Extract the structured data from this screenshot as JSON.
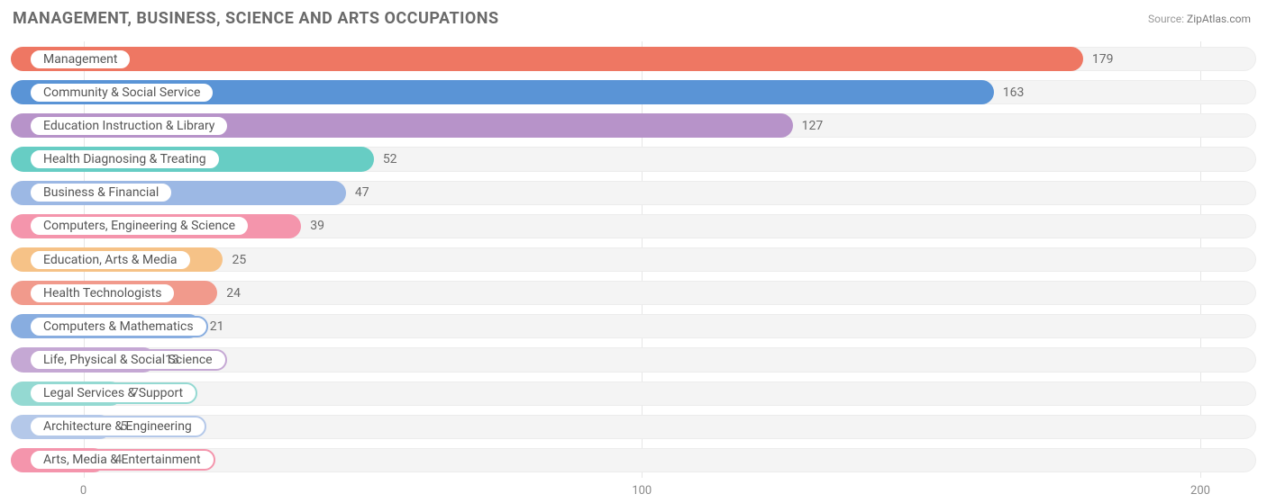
{
  "title": "MANAGEMENT, BUSINESS, SCIENCE AND ARTS OCCUPATIONS",
  "source": {
    "label": "Source:",
    "name": "ZipAtlas.com"
  },
  "chart": {
    "type": "bar-horizontal",
    "xlim": [
      -13,
      210
    ],
    "ticks": [
      0,
      100,
      200
    ],
    "background_color": "#ffffff",
    "track_color": "#f4f4f4",
    "track_border": "#ececec",
    "grid_color": "#e6e6e6",
    "title_fontsize": 18,
    "label_fontsize": 14,
    "tick_fontsize": 13,
    "text_color": "#6a6a6a",
    "bars": [
      {
        "label": "Management",
        "value": 179,
        "bar_color": "#ee7763",
        "pill_border": "#ee7763"
      },
      {
        "label": "Community & Social Service",
        "value": 163,
        "bar_color": "#5a94d6",
        "pill_border": "#5a94d6"
      },
      {
        "label": "Education Instruction & Library",
        "value": 127,
        "bar_color": "#b793c9",
        "pill_border": "#b793c9"
      },
      {
        "label": "Health Diagnosing & Treating",
        "value": 52,
        "bar_color": "#67cdc4",
        "pill_border": "#67cdc4"
      },
      {
        "label": "Business & Financial",
        "value": 47,
        "bar_color": "#9cb8e4",
        "pill_border": "#9cb8e4"
      },
      {
        "label": "Computers, Engineering & Science",
        "value": 39,
        "bar_color": "#f495ac",
        "pill_border": "#f495ac"
      },
      {
        "label": "Education, Arts & Media",
        "value": 25,
        "bar_color": "#f6c287",
        "pill_border": "#f6c287"
      },
      {
        "label": "Health Technologists",
        "value": 24,
        "bar_color": "#f19a8c",
        "pill_border": "#f19a8c"
      },
      {
        "label": "Computers & Mathematics",
        "value": 21,
        "bar_color": "#88ade0",
        "pill_border": "#88ade0"
      },
      {
        "label": "Life, Physical & Social Science",
        "value": 13,
        "bar_color": "#c5a8d4",
        "pill_border": "#c5a8d4"
      },
      {
        "label": "Legal Services & Support",
        "value": 7,
        "bar_color": "#94d9d2",
        "pill_border": "#94d9d2"
      },
      {
        "label": "Architecture & Engineering",
        "value": 5,
        "bar_color": "#b4c8e9",
        "pill_border": "#b4c8e9"
      },
      {
        "label": "Arts, Media & Entertainment",
        "value": 4,
        "bar_color": "#f495ac",
        "pill_border": "#f495ac"
      }
    ]
  }
}
